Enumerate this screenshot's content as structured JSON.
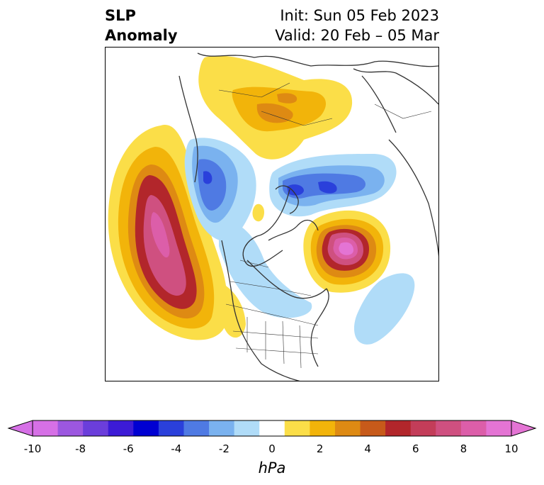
{
  "title": {
    "left_line1": "SLP",
    "left_line2": "Anomaly",
    "right_line1": "Init: Sun 05 Feb 2023",
    "right_line2": "Valid: 20 Feb – 05 Mar"
  },
  "colorbar": {
    "units": "hPa",
    "ticks": [
      "-10",
      "-8",
      "-6",
      "-4",
      "-2",
      "0",
      "2",
      "4",
      "6",
      "8",
      "10"
    ],
    "colors": [
      "#d670e6",
      "#9c57e0",
      "#6b3edb",
      "#3c1bd6",
      "#0000d2",
      "#2a40db",
      "#4f7ae3",
      "#7ab2ef",
      "#b0dcf8",
      "#ffffff",
      "#fbde48",
      "#f2b40a",
      "#de8a13",
      "#c75a1a",
      "#b2262b",
      "#c33d59",
      "#cf5080",
      "#dc5ea9",
      "#e474d4"
    ]
  },
  "map_colors": {
    "positive_light": "#fbde48",
    "positive_mid": "#f2b40a",
    "positive_strong": "#b2262b",
    "positive_max": "#e474d4",
    "negative_light": "#b0dcf8",
    "negative_mid": "#4f7ae3",
    "negative_strong": "#2a40db",
    "land_outline": "#333333"
  }
}
